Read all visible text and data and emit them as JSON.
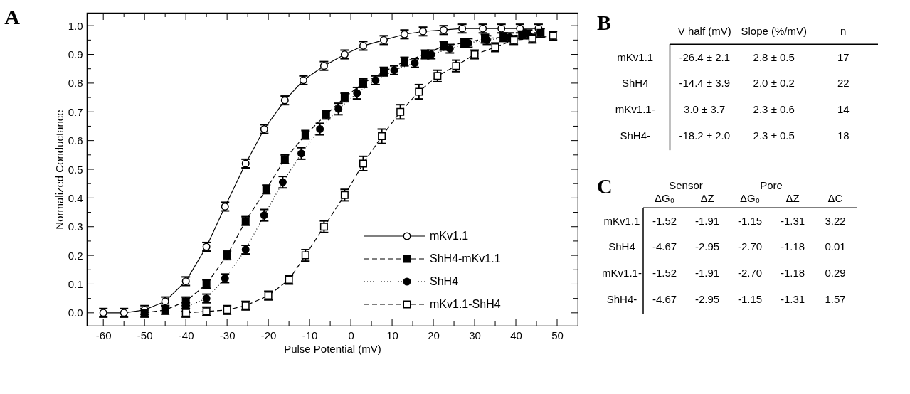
{
  "chart_data": [
    {
      "type": "line",
      "title": "A",
      "xlabel": "Pulse Potential (mV)",
      "ylabel": "Normalized Conductance",
      "xlim": [
        -64,
        55
      ],
      "ylim": [
        -0.045,
        1.045
      ],
      "xticks": [
        -60,
        {
          "value": -55,
          "label": null
        },
        -50,
        {
          "value": -45,
          "label": null
        },
        -40,
        {
          "value": -35,
          "label": null
        },
        -30,
        {
          "value": -25,
          "label": null
        },
        -20,
        {
          "value": -15,
          "label": null
        },
        -10,
        {
          "value": -5,
          "label": null
        },
        0,
        {
          "value": 5,
          "label": null
        },
        10,
        {
          "value": 15,
          "label": null
        },
        20,
        {
          "value": 25,
          "label": null
        },
        30,
        {
          "value": 35,
          "label": null
        },
        40,
        {
          "value": 45,
          "label": null
        },
        50
      ],
      "yticks": [
        {
          "value": 0,
          "label": "0.0"
        },
        {
          "value": 0.05,
          "label": null
        },
        0.1,
        {
          "value": 0.15,
          "label": null
        },
        0.2,
        {
          "value": 0.25,
          "label": null
        },
        0.3,
        {
          "value": 0.35,
          "label": null
        },
        0.4,
        {
          "value": 0.45,
          "label": null
        },
        0.5,
        {
          "value": 0.55,
          "label": null
        },
        0.6,
        {
          "value": 0.65,
          "label": null
        },
        0.7,
        {
          "value": 0.75,
          "label": null
        },
        0.8,
        {
          "value": 0.85,
          "label": null
        },
        0.9,
        {
          "value": 0.95,
          "label": null
        },
        {
          "value": 1,
          "label": "1.0"
        }
      ],
      "grid": false,
      "legend": "bottom right",
      "series": [
        {
          "name": "mKv1.1",
          "color": "#ffffff",
          "marker": "circle",
          "line_style": "solid",
          "x": [
            -60,
            -55,
            -50,
            -45,
            -40,
            -35,
            -30.5,
            -25.5,
            -21,
            -16,
            -11.5,
            -6.5,
            -1.5,
            3,
            8,
            13,
            17.5,
            22.5,
            27,
            32,
            36.5,
            41,
            45.5
          ],
          "values": [
            0,
            0,
            0.01,
            0.04,
            0.11,
            0.23,
            0.37,
            0.52,
            0.64,
            0.74,
            0.81,
            0.86,
            0.9,
            0.93,
            0.95,
            0.97,
            0.98,
            0.985,
            0.99,
            0.99,
            0.99,
            0.99,
            0.99
          ],
          "errors": [
            0.015,
            0.015,
            0.015,
            0.015,
            0.015,
            0.015,
            0.015,
            0.015,
            0.015,
            0.015,
            0.015,
            0.015,
            0.015,
            0.015,
            0.015,
            0.015,
            0.015,
            0.015,
            0.015,
            0.015,
            0.015,
            0.015,
            0.015
          ]
        },
        {
          "name": "ShH4-mKv1.1",
          "color": "#000000",
          "marker": "square",
          "line_style": "dashed",
          "x": [
            -50,
            -45,
            -40,
            -35,
            -30,
            -25.5,
            -20.5,
            -16,
            -11,
            -6,
            -1.5,
            3,
            8,
            13,
            18,
            22.5,
            27.5,
            32.5,
            37,
            41.5,
            46
          ],
          "values": [
            0,
            0.01,
            0.04,
            0.1,
            0.2,
            0.32,
            0.43,
            0.535,
            0.62,
            0.69,
            0.75,
            0.8,
            0.84,
            0.875,
            0.9,
            0.93,
            0.94,
            0.955,
            0.96,
            0.97,
            0.975
          ],
          "errors": [
            0.015,
            0.015,
            0.015,
            0.015,
            0.015,
            0.015,
            0.015,
            0.015,
            0.015,
            0.015,
            0.015,
            0.015,
            0.015,
            0.015,
            0.015,
            0.015,
            0.015,
            0.015,
            0.015,
            0.015,
            0.015
          ]
        },
        {
          "name": "ShH4",
          "color": "#000000",
          "marker": "circle",
          "line_style": "dotted",
          "x": [
            -40,
            -35,
            -30.5,
            -25.5,
            -21,
            -16.5,
            -12,
            -7.5,
            -3,
            1.5,
            6,
            10.5,
            15.5,
            19.5,
            24,
            28.5,
            33,
            38.5,
            43
          ],
          "values": [
            0.02,
            0.05,
            0.12,
            0.22,
            0.34,
            0.455,
            0.555,
            0.64,
            0.71,
            0.765,
            0.81,
            0.845,
            0.87,
            0.9,
            0.92,
            0.94,
            0.95,
            0.96,
            0.97
          ],
          "errors": [
            0.015,
            0.015,
            0.015,
            0.015,
            0.02,
            0.02,
            0.02,
            0.02,
            0.02,
            0.02,
            0.015,
            0.015,
            0.015,
            0.015,
            0.015,
            0.015,
            0.015,
            0.015,
            0.015
          ]
        },
        {
          "name": "mKv1.1-ShH4",
          "color": "#ffffff",
          "marker": "square",
          "line_style": "dashed",
          "x": [
            -40,
            -35,
            -30,
            -25.5,
            -20,
            -15,
            -11,
            -6.5,
            -1.5,
            3,
            7.5,
            12,
            16.5,
            21,
            25.5,
            30,
            35,
            39.5,
            44,
            49
          ],
          "values": [
            0,
            0.005,
            0.01,
            0.025,
            0.06,
            0.115,
            0.2,
            0.3,
            0.41,
            0.52,
            0.615,
            0.7,
            0.77,
            0.825,
            0.86,
            0.9,
            0.925,
            0.95,
            0.955,
            0.965
          ],
          "errors": [
            0.015,
            0.015,
            0.015,
            0.015,
            0.015,
            0.015,
            0.02,
            0.02,
            0.02,
            0.025,
            0.025,
            0.025,
            0.025,
            0.02,
            0.02,
            0.015,
            0.015,
            0.015,
            0.015,
            0.015
          ]
        }
      ]
    },
    {
      "type": "other",
      "title": "B",
      "categories": [
        "V half (mV)",
        "Slope (%/mV)",
        "n"
      ],
      "y_categories": [
        "mKv1.1",
        "ShH4",
        "mKv1.1-",
        "ShH4-"
      ],
      "cell_labels": [
        [
          "-26.4 ± 2.1",
          "2.8 ± 0.5",
          "17"
        ],
        [
          "-14.4 ± 3.9",
          "2.0 ± 0.2",
          "22"
        ],
        [
          "3.0 ± 3.7",
          "2.3 ± 0.6",
          "14"
        ],
        [
          "-18.2 ± 2.0",
          "2.3 ± 0.5",
          "18"
        ]
      ]
    },
    {
      "type": "other",
      "title": "C",
      "annotations": [
        "Sensor",
        "Pore"
      ],
      "categories": [
        "ΔG₀",
        "ΔZ",
        "ΔG₀",
        "ΔZ",
        "ΔC"
      ],
      "y_categories": [
        "mKv1.1",
        "ShH4",
        "mKv1.1-",
        "ShH4-"
      ],
      "cell_labels": [
        [
          "-1.52",
          "-1.91",
          "-1.15",
          "-1.31",
          "3.22"
        ],
        [
          "-4.67",
          "-2.95",
          "-2.70",
          "-1.18",
          "0.01"
        ],
        [
          "-1.52",
          "-1.91",
          "-2.70",
          "-1.18",
          "0.29"
        ],
        [
          "-4.67",
          "-2.95",
          "-1.15",
          "-1.31",
          "1.57"
        ]
      ]
    }
  ]
}
